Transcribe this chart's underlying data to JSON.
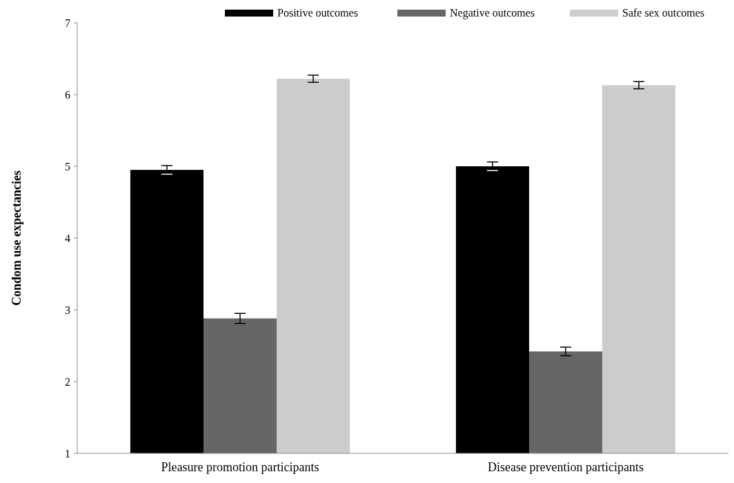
{
  "chart_data": {
    "type": "bar",
    "ylabel": "Condom use expectancies",
    "categories": [
      "Pleasure promotion participants",
      "Disease prevention participants"
    ],
    "series": [
      {
        "name": "Positive outcomes",
        "color": "#000000",
        "values": [
          4.95,
          5.0
        ],
        "errors": [
          0.06,
          0.06
        ]
      },
      {
        "name": "Negative outcomes",
        "color": "#666666",
        "values": [
          2.88,
          2.42
        ],
        "errors": [
          0.07,
          0.06
        ]
      },
      {
        "name": "Safe sex outcomes",
        "color": "#cccccc",
        "values": [
          6.22,
          6.13
        ],
        "errors": [
          0.05,
          0.05
        ]
      }
    ],
    "ylim": [
      1,
      7
    ],
    "yticks": [
      1,
      2,
      3,
      4,
      5,
      6,
      7
    ],
    "grid": false,
    "legend": "top right"
  }
}
